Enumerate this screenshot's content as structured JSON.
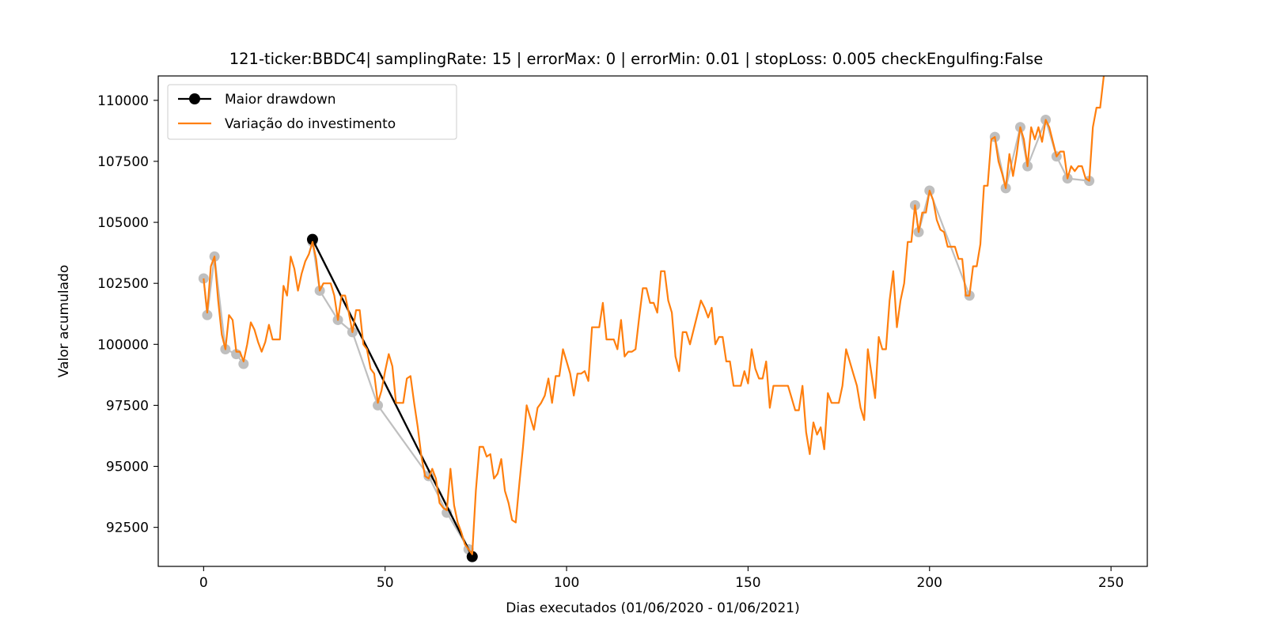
{
  "chart_data": {
    "type": "line",
    "title": "121-ticker:BBDC4| samplingRate: 15 | errorMax: 0 | errorMin: 0.01 | stopLoss: 0.005 checkEngulfing:False",
    "xlabel": "Dias executados (01/06/2020 - 01/06/2021)",
    "ylabel": "Valor acumulado",
    "xlim": [
      -12.5,
      260
    ],
    "ylim": [
      90900,
      111000
    ],
    "xticks": [
      0,
      50,
      100,
      150,
      200,
      250
    ],
    "xtick_labels": [
      "0",
      "50",
      "100",
      "150",
      "200",
      "250"
    ],
    "yticks": [
      92500,
      95000,
      97500,
      100000,
      102500,
      105000,
      107500,
      110000
    ],
    "ytick_labels": [
      "92500",
      "95000",
      "97500",
      "100000",
      "102500",
      "105000",
      "107500",
      "110000"
    ],
    "grid": false,
    "legend_position": "upper-left",
    "legend": [
      {
        "label": "Maior drawdown",
        "color": "#000000",
        "marker": "circle"
      },
      {
        "label": "Variação do investimento",
        "color": "#ff7f0e",
        "marker": "none"
      }
    ],
    "series": [
      {
        "name": "Variação do investimento",
        "color": "#ff7f0e",
        "x": [
          0,
          1,
          2,
          3,
          4,
          5,
          6,
          7,
          8,
          9,
          10,
          11,
          12,
          13,
          14,
          15,
          16,
          17,
          18,
          19,
          20,
          21,
          22,
          23,
          24,
          25,
          26,
          27,
          28,
          29,
          30,
          31,
          32,
          33,
          34,
          35,
          36,
          37,
          38,
          39,
          40,
          41,
          42,
          43,
          44,
          45,
          46,
          47,
          48,
          49,
          50,
          51,
          52,
          53,
          54,
          55,
          56,
          57,
          58,
          59,
          60,
          61,
          62,
          63,
          64,
          65,
          66,
          67,
          68,
          69,
          70,
          71,
          72,
          73,
          74,
          75,
          76,
          77,
          78,
          79,
          80,
          81,
          82,
          83,
          84,
          85,
          86,
          87,
          88,
          89,
          90,
          91,
          92,
          93,
          94,
          95,
          96,
          97,
          98,
          99,
          100,
          101,
          102,
          103,
          104,
          105,
          106,
          107,
          108,
          109,
          110,
          111,
          112,
          113,
          114,
          115,
          116,
          117,
          118,
          119,
          120,
          121,
          122,
          123,
          124,
          125,
          126,
          127,
          128,
          129,
          130,
          131,
          132,
          133,
          134,
          135,
          136,
          137,
          138,
          139,
          140,
          141,
          142,
          143,
          144,
          145,
          146,
          147,
          148,
          149,
          150,
          151,
          152,
          153,
          154,
          155,
          156,
          157,
          158,
          159,
          160,
          161,
          162,
          163,
          164,
          165,
          166,
          167,
          168,
          169,
          170,
          171,
          172,
          173,
          174,
          175,
          176,
          177,
          178,
          179,
          180,
          181,
          182,
          183,
          184,
          185,
          186,
          187,
          188,
          189,
          190,
          191,
          192,
          193,
          194,
          195,
          196,
          197,
          198,
          199,
          200,
          201,
          202,
          203,
          204,
          205,
          206,
          207,
          208,
          209,
          210,
          211,
          212,
          213,
          214,
          215,
          216,
          217,
          218,
          219,
          220,
          221,
          222,
          223,
          224,
          225,
          226,
          227,
          228,
          229,
          230,
          231,
          232,
          233,
          234,
          235,
          236,
          237,
          238,
          239,
          240,
          241,
          242,
          243,
          244,
          245,
          246,
          247,
          248
        ],
        "values": [
          102700,
          101300,
          103200,
          103600,
          101800,
          100400,
          99800,
          101200,
          101000,
          99700,
          99700,
          99300,
          100000,
          100900,
          100600,
          100100,
          99700,
          100100,
          100800,
          100200,
          100200,
          100200,
          102400,
          102000,
          103600,
          103100,
          102200,
          102900,
          103400,
          103700,
          104200,
          103500,
          102200,
          102500,
          102500,
          102500,
          102000,
          101000,
          102000,
          102000,
          101300,
          100500,
          101400,
          101400,
          100000,
          99800,
          99000,
          98800,
          97600,
          98100,
          98900,
          99600,
          99100,
          97600,
          97600,
          97600,
          98600,
          98700,
          97600,
          96600,
          95400,
          94600,
          94500,
          94900,
          94500,
          93500,
          93300,
          93200,
          94900,
          93400,
          92700,
          92300,
          91800,
          91600,
          91400,
          94000,
          95800,
          95800,
          95400,
          95500,
          94500,
          94700,
          95300,
          94000,
          93500,
          92800,
          92700,
          94300,
          95800,
          97500,
          97000,
          96500,
          97400,
          97600,
          97900,
          98600,
          97600,
          98700,
          98700,
          99800,
          99300,
          98800,
          97900,
          98800,
          98800,
          98900,
          98500,
          100700,
          100700,
          100700,
          101700,
          100200,
          100200,
          100200,
          99800,
          101000,
          99500,
          99700,
          99700,
          99800,
          101100,
          102300,
          102300,
          101700,
          101700,
          101300,
          103000,
          103000,
          101800,
          101300,
          99500,
          98900,
          100500,
          100500,
          100000,
          100600,
          101200,
          101800,
          101500,
          101100,
          101500,
          100000,
          100300,
          100300,
          99300,
          99300,
          98300,
          98300,
          98300,
          98900,
          98400,
          99800,
          99000,
          98600,
          98600,
          99300,
          97400,
          98300,
          98300,
          98300,
          98300,
          98300,
          97800,
          97300,
          97300,
          98300,
          96400,
          95500,
          96800,
          96300,
          96600,
          95700,
          98000,
          97600,
          97600,
          97600,
          98300,
          99800,
          99300,
          98800,
          98300,
          97400,
          96900,
          99800,
          98800,
          97800,
          100300,
          99800,
          99800,
          101800,
          103000,
          100700,
          101800,
          102500,
          104200,
          104200,
          105700,
          104600,
          105400,
          105400,
          106300,
          105900,
          105100,
          104700,
          104600,
          104000,
          104000,
          104000,
          103500,
          103500,
          102000,
          102000,
          103200,
          103200,
          104100,
          106500,
          106500,
          108400,
          108500,
          107500,
          107000,
          106400,
          107800,
          106900,
          107800,
          108900,
          108400,
          107300,
          108900,
          108400,
          108900,
          108300,
          109200,
          108900,
          108300,
          107700,
          107900,
          107900,
          106800,
          107300,
          107100,
          107300,
          107300,
          106800,
          106700,
          108900,
          109700,
          109700,
          111000
        ]
      },
      {
        "name": "",
        "color": "#bfbfbf",
        "x": [
          0,
          1,
          3,
          6,
          9,
          11
        ],
        "values": [
          102700,
          101200,
          103600,
          99800,
          99600,
          99200
        ]
      },
      {
        "name": "",
        "color": "#bfbfbf",
        "x": [
          30,
          32,
          37,
          41,
          48,
          62,
          67,
          73
        ],
        "values": [
          104200,
          102200,
          101000,
          100500,
          97500,
          94600,
          93100,
          91600
        ]
      },
      {
        "name": "",
        "color": "#bfbfbf",
        "x": [
          196,
          197,
          200,
          211
        ],
        "values": [
          105700,
          104600,
          106300,
          102000
        ]
      },
      {
        "name": "",
        "color": "#bfbfbf",
        "x": [
          218,
          221,
          225,
          227,
          232,
          235,
          238,
          244
        ],
        "values": [
          108500,
          106400,
          108900,
          107300,
          109200,
          107700,
          106800,
          106700
        ]
      },
      {
        "name": "Maior drawdown",
        "color": "#000000",
        "x": [
          30,
          74
        ],
        "values": [
          104300,
          91300
        ]
      }
    ]
  }
}
